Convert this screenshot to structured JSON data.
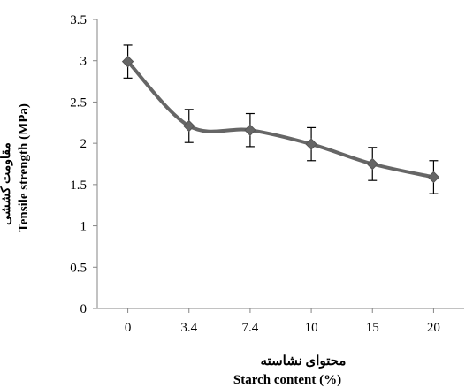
{
  "chart_data": {
    "type": "line",
    "title": "",
    "xlabel": "Starch content (%)",
    "xlabel_alt": "محتوای نشاسته",
    "ylabel": "Tensile strength (MPa)",
    "ylabel_alt": "مقاومت کششی",
    "categories": [
      "0",
      "3.4",
      "7.4",
      "10",
      "15",
      "20"
    ],
    "series": [
      {
        "values": [
          2.99,
          2.21,
          2.16,
          1.99,
          1.75,
          1.59
        ],
        "error": [
          0.2,
          0.2,
          0.2,
          0.2,
          0.2,
          0.2
        ]
      }
    ],
    "ylim": [
      0,
      3.5
    ],
    "yticks": [
      "0",
      "0.5",
      "1",
      "1.5",
      "2",
      "2.5",
      "3",
      "3.5"
    ],
    "grid": false,
    "legend": "none",
    "line_color": "#666666",
    "marker": "diamond"
  }
}
